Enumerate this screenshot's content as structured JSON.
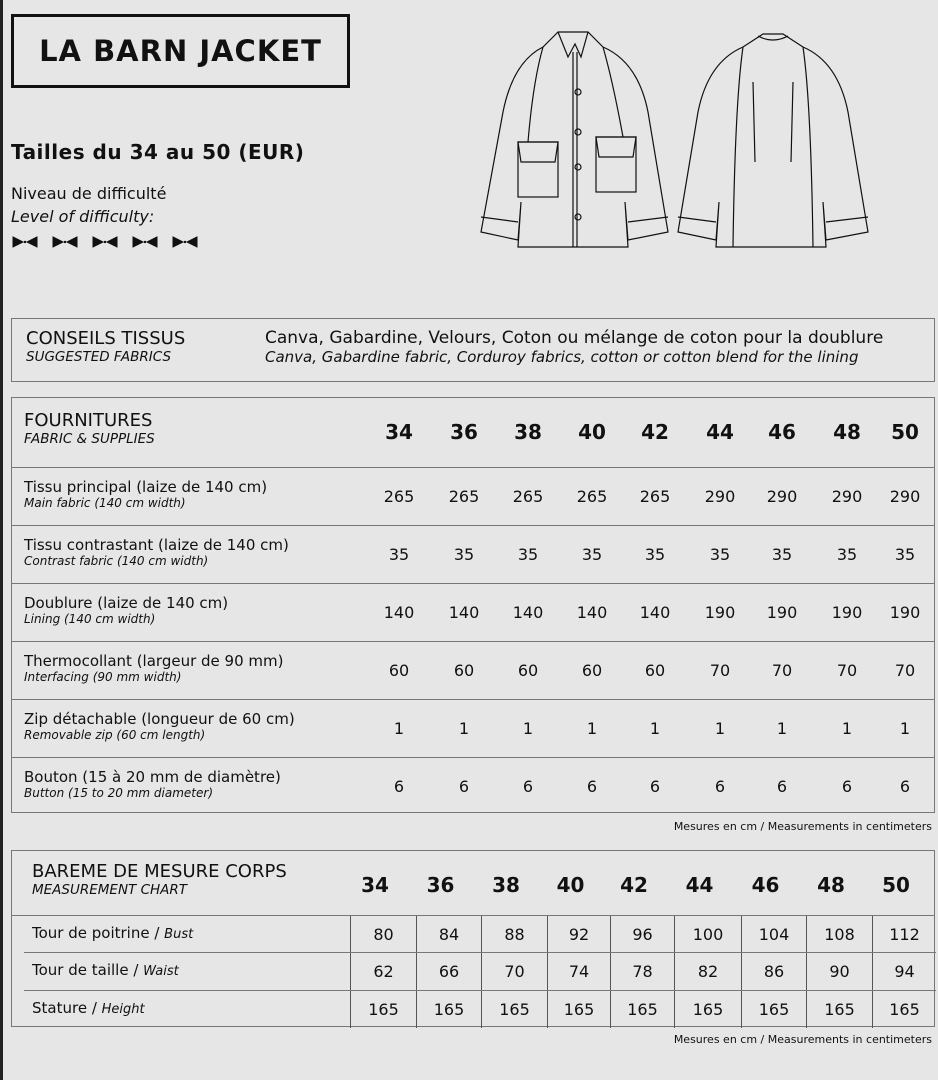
{
  "title": "LA BARN JACKET",
  "sizes_range": "Tailles du 34 au 50 (EUR)",
  "difficulty": {
    "label_fr": "Niveau de difficulté",
    "label_en": "Level of difficulty:",
    "level": 5,
    "max": 5,
    "icon": "bow-tie-icon"
  },
  "fabrics": {
    "title_fr": "CONSEILS TISSUS",
    "title_en": "SUGGESTED FABRICS",
    "value_fr": "Canva, Gabardine, Velours, Coton ou mélange de coton pour la doublure",
    "value_en": "Canva, Gabardine fabric, Corduroy fabrics, cotton or cotton blend for the lining"
  },
  "supplies": {
    "title_fr": "FOURNITURES",
    "title_en": "FABRIC & SUPPLIES",
    "sizes": [
      "34",
      "36",
      "38",
      "40",
      "42",
      "44",
      "46",
      "48",
      "50"
    ],
    "rows": [
      {
        "fr": "Tissu principal (laize de 140 cm)",
        "en": "Main fabric (140 cm width)",
        "values": [
          "265",
          "265",
          "265",
          "265",
          "265",
          "290",
          "290",
          "290",
          "290"
        ]
      },
      {
        "fr": "Tissu contrastant (laize de 140 cm)",
        "en": "Contrast fabric (140 cm width)",
        "values": [
          "35",
          "35",
          "35",
          "35",
          "35",
          "35",
          "35",
          "35",
          "35"
        ]
      },
      {
        "fr": "Doublure (laize de 140 cm)",
        "en": "Lining (140 cm width)",
        "values": [
          "140",
          "140",
          "140",
          "140",
          "140",
          "190",
          "190",
          "190",
          "190"
        ]
      },
      {
        "fr": "Thermocollant (largeur de 90 mm)",
        "en": "Interfacing (90 mm width)",
        "values": [
          "60",
          "60",
          "60",
          "60",
          "60",
          "70",
          "70",
          "70",
          "70"
        ]
      },
      {
        "fr": "Zip détachable (longueur de 60 cm)",
        "en": "Removable zip (60 cm length)",
        "values": [
          "1",
          "1",
          "1",
          "1",
          "1",
          "1",
          "1",
          "1",
          "1"
        ]
      },
      {
        "fr": "Bouton (15 à 20 mm de diamètre)",
        "en": "Button (15 to 20 mm diameter)",
        "values": [
          "6",
          "6",
          "6",
          "6",
          "6",
          "6",
          "6",
          "6",
          "6"
        ]
      }
    ],
    "note": "Mesures en cm / Measurements in centimeters"
  },
  "measurements": {
    "title_fr": "BAREME DE MESURE CORPS",
    "title_en": "MEASUREMENT CHART",
    "sizes": [
      "34",
      "36",
      "38",
      "40",
      "42",
      "44",
      "46",
      "48",
      "50"
    ],
    "rows": [
      {
        "fr": "Tour de poitrine / ",
        "en": "Bust",
        "values": [
          "80",
          "84",
          "88",
          "92",
          "96",
          "100",
          "104",
          "108",
          "112"
        ]
      },
      {
        "fr": "Tour de taille / ",
        "en": "Waist",
        "values": [
          "62",
          "66",
          "70",
          "74",
          "78",
          "82",
          "86",
          "90",
          "94"
        ]
      },
      {
        "fr": "Stature / ",
        "en": "Height",
        "values": [
          "165",
          "165",
          "165",
          "165",
          "165",
          "165",
          "165",
          "165",
          "165"
        ]
      }
    ],
    "note": "Mesures en cm / Measurements in centimeters"
  }
}
